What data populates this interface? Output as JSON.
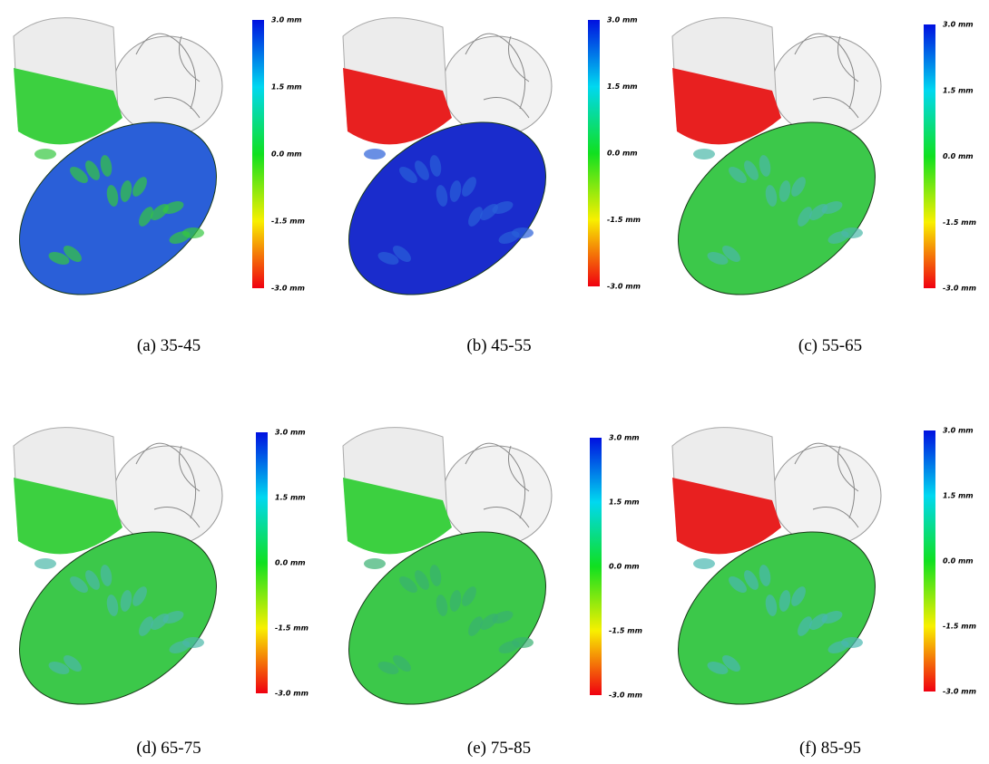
{
  "panels": [
    {
      "caption": "(a) 35-45",
      "colorbar": {
        "labels": [
          "3.0 mm",
          "1.5 mm",
          "0.0 mm",
          "-1.5 mm",
          "-3.0 mm"
        ]
      }
    },
    {
      "caption": "(b) 45-55",
      "colorbar": {
        "labels": [
          "3.0 mm",
          "1.5 mm",
          "0.0 mm",
          "-1.5 mm",
          "-3.0 mm"
        ]
      }
    },
    {
      "caption": "(c) 55-65",
      "colorbar": {
        "labels": [
          "3.0 mm",
          "1.5 mm",
          "0.0 mm",
          "-1.5 mm",
          "-3.0 mm"
        ]
      }
    },
    {
      "caption": "(d) 65-75",
      "colorbar": {
        "labels": [
          "3.0 mm",
          "1.5 mm",
          "0.0 mm",
          "-1.5 mm",
          "-3.0 mm"
        ]
      }
    },
    {
      "caption": "(e) 75-85",
      "colorbar": {
        "labels": [
          "3.0 mm",
          "1.5 mm",
          "0.0 mm",
          "-1.5 mm",
          "-3.0 mm"
        ]
      }
    },
    {
      "caption": "(f) 85-95",
      "colorbar": {
        "labels": [
          "3.0 mm",
          "1.5 mm",
          "0.0 mm",
          "-1.5 mm",
          "-3.0 mm"
        ]
      }
    }
  ]
}
